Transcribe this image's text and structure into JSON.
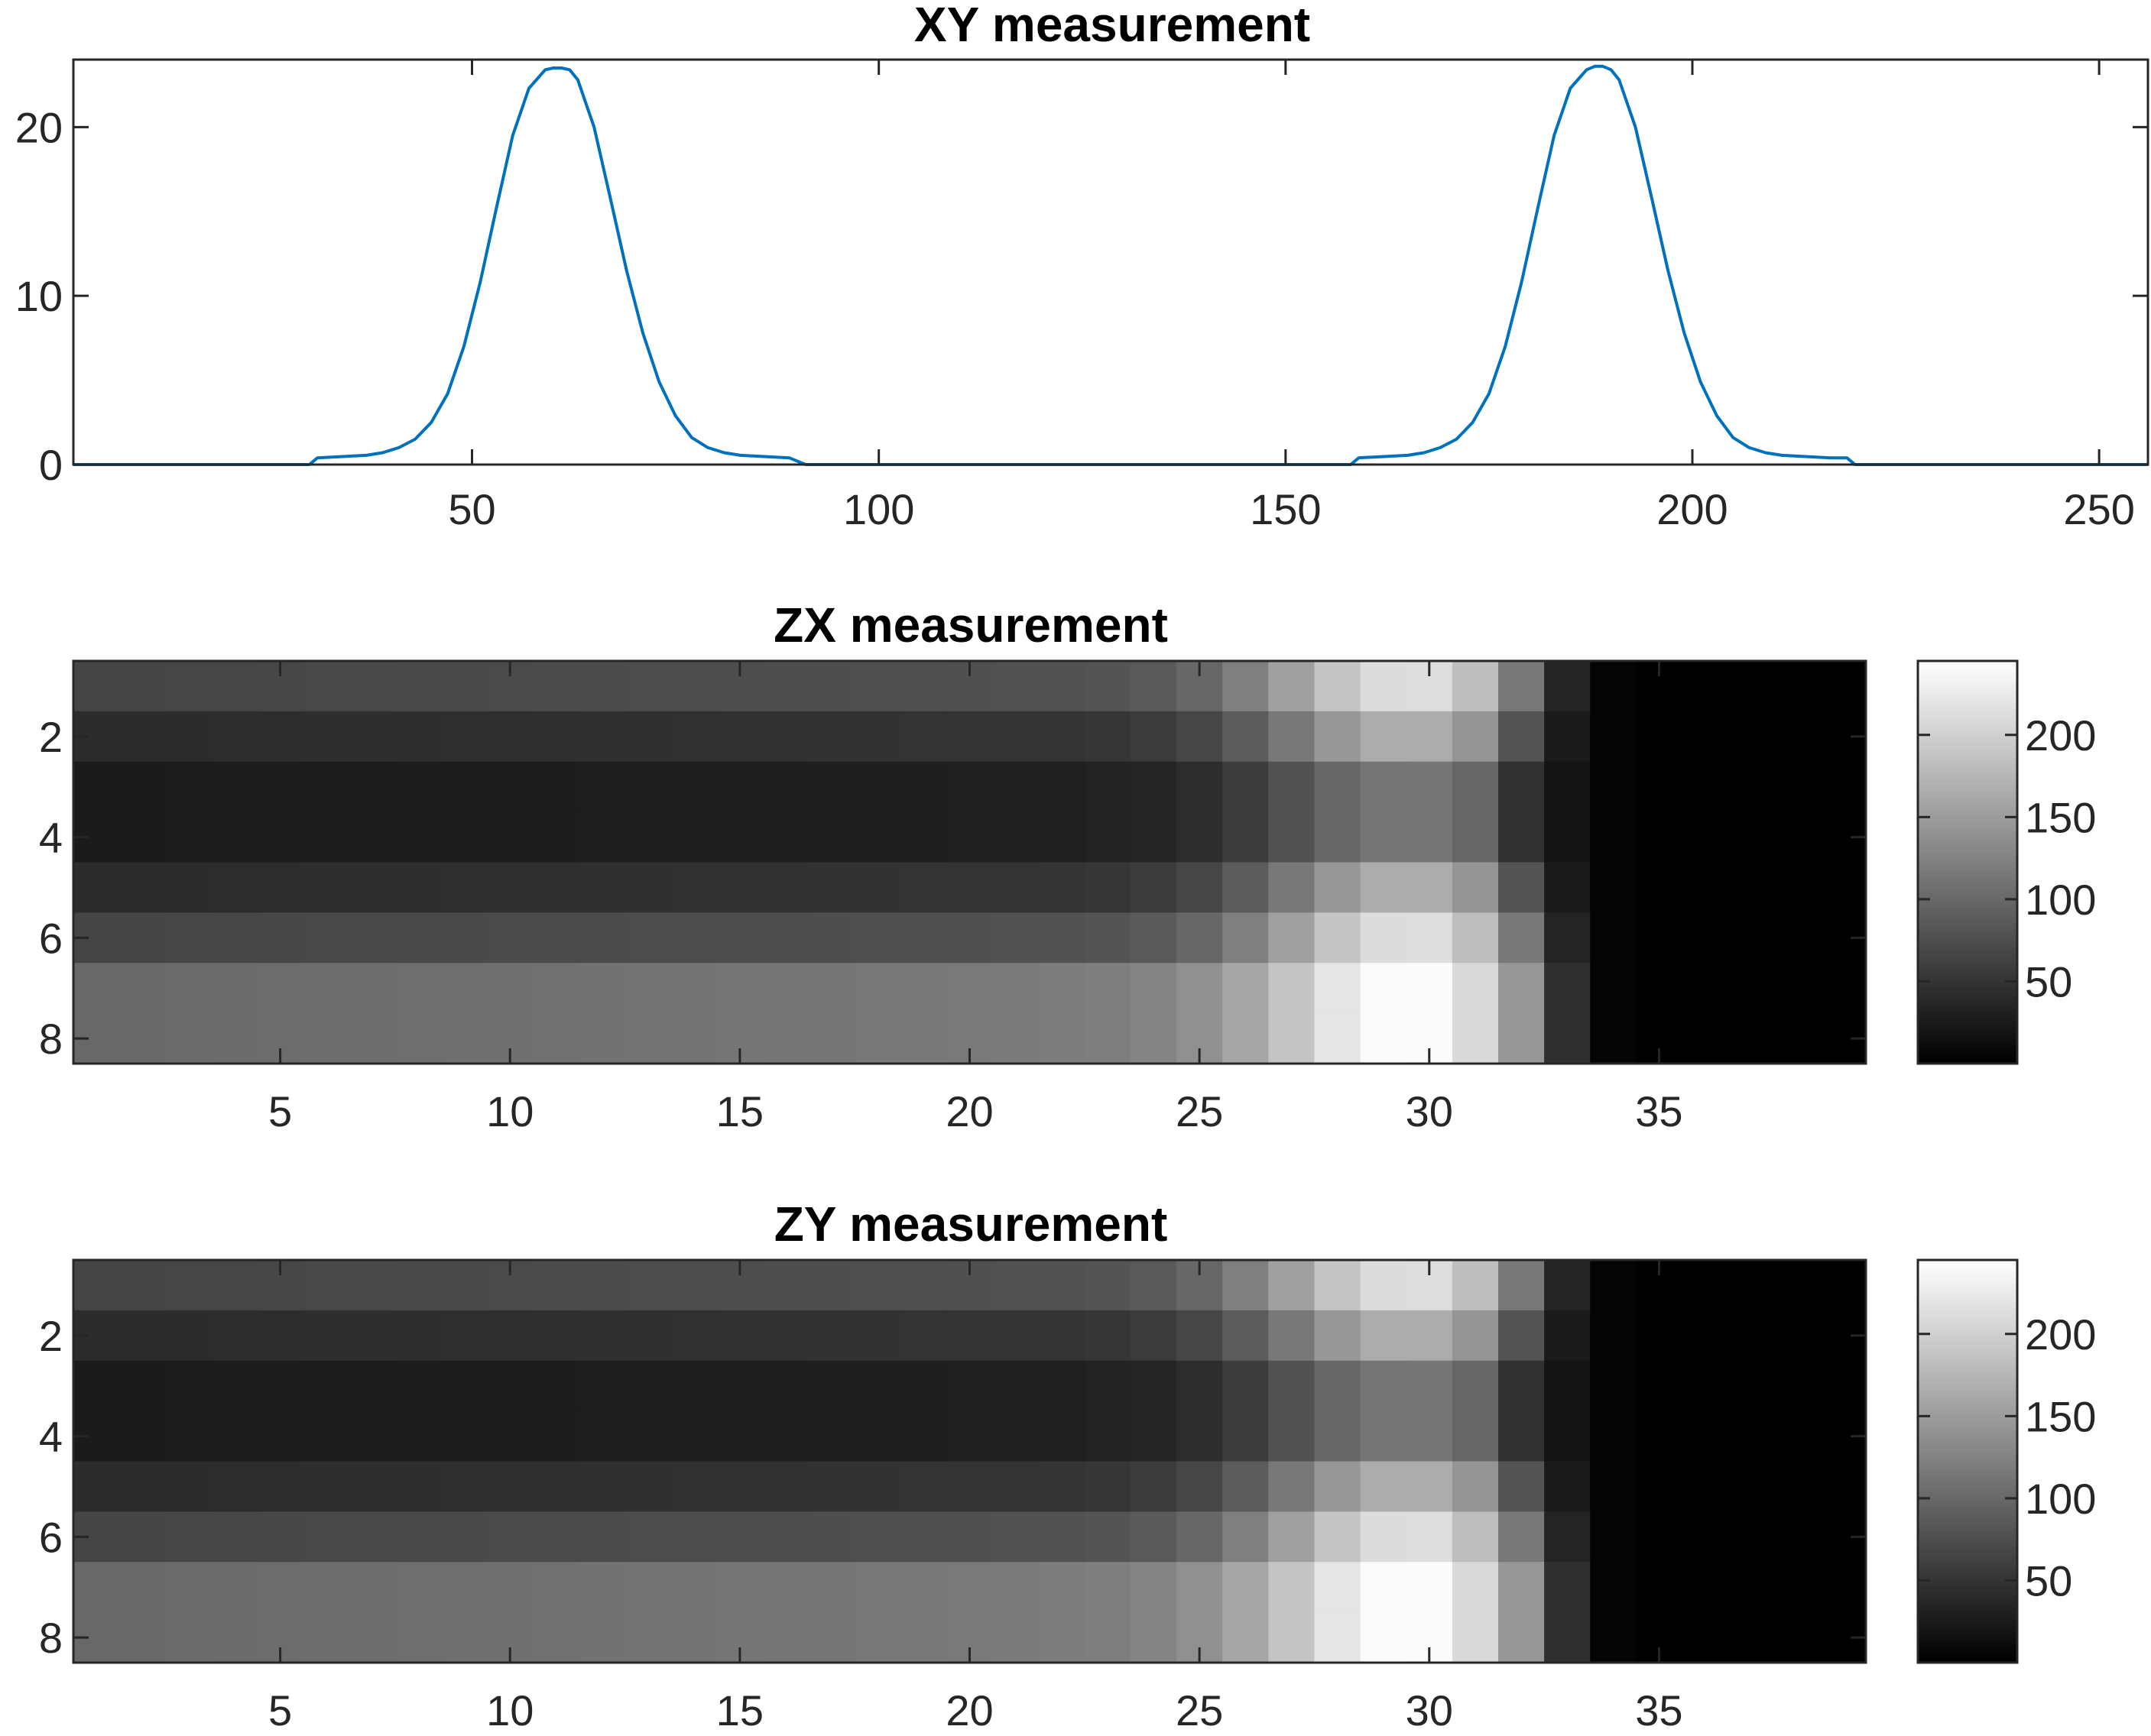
{
  "chart_data": [
    {
      "type": "line",
      "title": "XY measurement",
      "xlabel": "",
      "ylabel": "",
      "xlim": [
        1,
        256
      ],
      "ylim": [
        0,
        24
      ],
      "xticks": [
        50,
        100,
        150,
        200,
        250
      ],
      "yticks": [
        0,
        10,
        20
      ],
      "grid": false,
      "series": [
        {
          "color": "#0072BD",
          "x": [
            1,
            30,
            31,
            33,
            35,
            37,
            39,
            41,
            43,
            45,
            47,
            49,
            51,
            53,
            55,
            57,
            59,
            60,
            61,
            62,
            63,
            65,
            67,
            69,
            71,
            73,
            75,
            77,
            79,
            81,
            83,
            85,
            87,
            89,
            91,
            92,
            158,
            159,
            161,
            163,
            165,
            167,
            169,
            171,
            173,
            175,
            177,
            179,
            181,
            183,
            185,
            187,
            188,
            189,
            190,
            191,
            193,
            195,
            197,
            199,
            201,
            203,
            205,
            207,
            209,
            211,
            213,
            215,
            217,
            219,
            220,
            256
          ],
          "y": [
            0,
            0,
            0.4,
            0.45,
            0.5,
            0.55,
            0.7,
            1.0,
            1.5,
            2.5,
            4.2,
            7.0,
            10.8,
            15.2,
            19.5,
            22.3,
            23.4,
            23.5,
            23.5,
            23.4,
            22.8,
            20.0,
            15.8,
            11.5,
            7.8,
            4.9,
            2.9,
            1.6,
            1.0,
            0.7,
            0.55,
            0.5,
            0.45,
            0.4,
            0,
            0,
            0,
            0.4,
            0.45,
            0.5,
            0.55,
            0.7,
            1.0,
            1.5,
            2.5,
            4.2,
            7.0,
            10.8,
            15.2,
            19.5,
            22.3,
            23.4,
            23.6,
            23.6,
            23.4,
            22.8,
            20.0,
            15.8,
            11.5,
            7.8,
            4.9,
            2.9,
            1.6,
            1.0,
            0.7,
            0.55,
            0.5,
            0.45,
            0.4,
            0.4,
            0,
            0
          ]
        }
      ]
    },
    {
      "type": "heatmap",
      "title": "ZX measurement",
      "xlabel": "",
      "ylabel": "",
      "colormap": "gray",
      "clim": [
        0,
        245
      ],
      "xlim": [
        0.5,
        39.5
      ],
      "ylim": [
        0.5,
        8.5
      ],
      "xticks": [
        5,
        10,
        15,
        20,
        25,
        30,
        35
      ],
      "yticks": [
        2,
        4,
        6,
        8
      ],
      "colorbar_ticks": [
        50,
        100,
        150,
        200
      ],
      "row_base": [
        66,
        42,
        26,
        26,
        42,
        66,
        100,
        100
      ],
      "row_peak": [
        215,
        168,
        115,
        115,
        168,
        215,
        245,
        245
      ],
      "row_col32": [
        115,
        80,
        48,
        48,
        80,
        115,
        145,
        145
      ],
      "row_col33": [
        35,
        25,
        18,
        18,
        25,
        35,
        45,
        45
      ]
    },
    {
      "type": "heatmap",
      "title": "ZY measurement",
      "xlabel": "",
      "ylabel": "",
      "colormap": "gray",
      "clim": [
        0,
        245
      ],
      "xlim": [
        0.5,
        39.5
      ],
      "ylim": [
        0.5,
        8.5
      ],
      "xticks": [
        5,
        10,
        15,
        20,
        25,
        30,
        35
      ],
      "yticks": [
        2,
        4,
        6,
        8
      ],
      "colorbar_ticks": [
        50,
        100,
        150,
        200
      ],
      "row_base": [
        66,
        42,
        26,
        26,
        42,
        66,
        100,
        100
      ],
      "row_peak": [
        215,
        168,
        115,
        115,
        168,
        215,
        245,
        245
      ],
      "row_col32": [
        115,
        80,
        48,
        48,
        80,
        115,
        145,
        145
      ],
      "row_col33": [
        35,
        25,
        18,
        18,
        25,
        35,
        45,
        45
      ]
    }
  ]
}
